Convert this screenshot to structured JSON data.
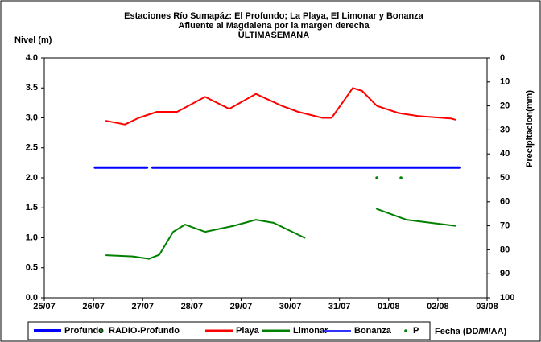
{
  "chart_data": {
    "type": "line",
    "title": [
      "Estaciones Río Sumapáz: El Profundo; La Playa, El Limonar y Bonanza",
      "Afluente al Magdalena por la margen derecha",
      "ULTIMASEMANA"
    ],
    "y_label": "Nivel (m)",
    "y2_label": "Precipitacion(mm)",
    "x_label": "Fecha (DD/M/AA)",
    "xlim": [
      0,
      9
    ],
    "xticks": [
      {
        "value": 0,
        "label": "25/07"
      },
      {
        "value": 1,
        "label": "26/07"
      },
      {
        "value": 2,
        "label": "27/07"
      },
      {
        "value": 3,
        "label": "28/07"
      },
      {
        "value": 4,
        "label": "29/07"
      },
      {
        "value": 5,
        "label": "30/07"
      },
      {
        "value": 6,
        "label": "31/07"
      },
      {
        "value": 7,
        "label": "01/08"
      },
      {
        "value": 8,
        "label": "02/08"
      },
      {
        "value": 9,
        "label": "03/08"
      }
    ],
    "ylim": [
      0,
      4
    ],
    "yticks": [
      {
        "value": 0,
        "label": "0.0"
      },
      {
        "value": 0.5,
        "label": "0.5"
      },
      {
        "value": 1,
        "label": "1.0"
      },
      {
        "value": 1.5,
        "label": "1.5"
      },
      {
        "value": 2,
        "label": "2.0"
      },
      {
        "value": 2.5,
        "label": "2.5"
      },
      {
        "value": 3,
        "label": "3.0"
      },
      {
        "value": 3.5,
        "label": "3.5"
      },
      {
        "value": 4,
        "label": "4.0"
      }
    ],
    "y2lim": [
      100,
      0
    ],
    "y2ticks": [
      0,
      10,
      20,
      30,
      40,
      50,
      60,
      70,
      80,
      90,
      100
    ],
    "series": [
      {
        "name": "Profundo",
        "color": "#0000ff",
        "marker": "line",
        "width": 3,
        "x": [
          1.03,
          2.09,
          2.15,
          2.2,
          8.45
        ],
        "values": [
          2.17,
          2.17,
          null,
          2.17,
          2.17
        ]
      },
      {
        "name": "RADIO-Profundo",
        "color": "#008000",
        "marker": "dot",
        "x": [
          6.76,
          7.25
        ],
        "values": [
          2.0,
          2.0
        ]
      },
      {
        "name": "Playa",
        "color": "#ff0000",
        "marker": "line",
        "width": 2,
        "x": [
          1.26,
          1.64,
          1.92,
          2.29,
          2.7,
          3.27,
          3.76,
          4.3,
          4.83,
          5.16,
          5.65,
          5.84,
          6.1,
          6.27,
          6.46,
          6.76,
          7.2,
          7.6,
          8.26,
          8.35
        ],
        "values": [
          2.95,
          2.89,
          3.0,
          3.1,
          3.1,
          3.35,
          3.15,
          3.4,
          3.2,
          3.1,
          3.0,
          3.0,
          3.3,
          3.5,
          3.45,
          3.2,
          3.08,
          3.03,
          2.99,
          2.97
        ]
      },
      {
        "name": "Limonar",
        "color": "#008000",
        "marker": "line",
        "width": 2,
        "x": [
          1.26,
          1.8,
          2.13,
          2.34,
          2.62,
          2.86,
          3.27,
          3.85,
          4.3,
          4.66,
          5.29,
          6.0,
          6.76,
          7.36,
          8.35
        ],
        "values": [
          0.71,
          0.69,
          0.65,
          0.72,
          1.1,
          1.22,
          1.1,
          1.2,
          1.3,
          1.25,
          1.0,
          null,
          1.48,
          1.3,
          1.2
        ]
      },
      {
        "name": "Bonanza",
        "color": "#3333ff",
        "marker": "line",
        "width": 1,
        "x": [],
        "values": []
      },
      {
        "name": "P",
        "color": "#008000",
        "marker": "dot",
        "x": [],
        "values": []
      }
    ]
  }
}
